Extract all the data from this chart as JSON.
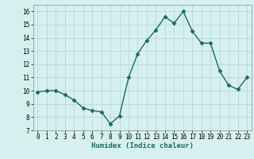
{
  "x": [
    0,
    1,
    2,
    3,
    4,
    5,
    6,
    7,
    8,
    9,
    10,
    11,
    12,
    13,
    14,
    15,
    16,
    17,
    18,
    19,
    20,
    21,
    22,
    23
  ],
  "y": [
    9.9,
    10.0,
    10.0,
    9.7,
    9.3,
    8.7,
    8.5,
    8.4,
    7.5,
    8.1,
    11.0,
    12.8,
    13.8,
    14.6,
    15.6,
    15.1,
    16.0,
    14.5,
    13.6,
    13.6,
    11.5,
    10.4,
    10.1,
    11.0
  ],
  "line_color": "#1a6b5a",
  "marker": "D",
  "marker_size": 2.5,
  "bg_color": "#d6f0f0",
  "grid_color": "#b8d8d8",
  "xlabel": "Humidex (Indice chaleur)",
  "ylim": [
    7,
    16.5
  ],
  "xlim": [
    -0.5,
    23.5
  ],
  "yticks": [
    7,
    8,
    9,
    10,
    11,
    12,
    13,
    14,
    15,
    16
  ],
  "xticks": [
    0,
    1,
    2,
    3,
    4,
    5,
    6,
    7,
    8,
    9,
    10,
    11,
    12,
    13,
    14,
    15,
    16,
    17,
    18,
    19,
    20,
    21,
    22,
    23
  ],
  "label_fontsize": 6.5,
  "tick_fontsize": 5.5
}
